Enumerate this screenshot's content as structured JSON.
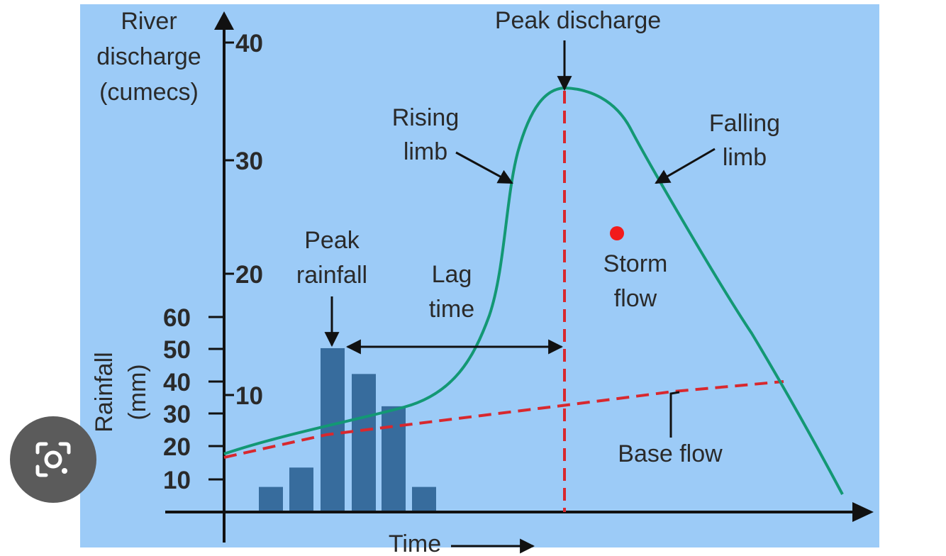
{
  "diagram": {
    "discharge_axis": {
      "title_lines": [
        "River",
        "discharge",
        "(cumecs)"
      ],
      "ticks": [
        "40",
        "30",
        "20",
        "10"
      ]
    },
    "rainfall_axis": {
      "title_lines": [
        "Rainfall",
        "(mm)"
      ],
      "ticks": [
        "60",
        "50",
        "40",
        "30",
        "20",
        "10"
      ]
    },
    "x_axis": {
      "label": "Time"
    },
    "rainfall_bars_mm": [
      8,
      14,
      51,
      43,
      33,
      8
    ],
    "annotations": {
      "peak_discharge": "Peak discharge",
      "rising_limb": [
        "Rising",
        "limb"
      ],
      "falling_limb": [
        "Falling",
        "limb"
      ],
      "peak_rainfall": [
        "Peak",
        "rainfall"
      ],
      "lag_time": [
        "Lag",
        "time"
      ],
      "storm_flow": [
        "Storm",
        "flow"
      ],
      "base_flow": "Base flow"
    },
    "colors": {
      "background": "#9ccbf7",
      "hydrograph": "#139874",
      "bars": "#376c9d",
      "base_flow_line": "#d8282e",
      "marker_dot": "#f21b1b"
    }
  },
  "overlay": {
    "lens_button": "google-lens-icon"
  }
}
